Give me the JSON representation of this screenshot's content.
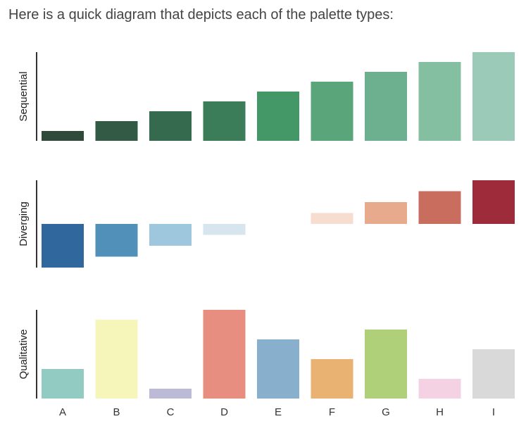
{
  "intro_text": "Here is a quick diagram that depicts each of the palette types:",
  "chart_data": [
    {
      "type": "bar",
      "ylabel": "Sequential",
      "categories": [
        "A",
        "B",
        "C",
        "D",
        "E",
        "F",
        "G",
        "H",
        "I"
      ],
      "values": [
        1,
        2,
        3,
        4,
        5,
        6,
        7,
        8,
        9
      ],
      "ylim": [
        0,
        9
      ],
      "colors": [
        "#2f4a3b",
        "#325a45",
        "#356a4f",
        "#3b7d59",
        "#449767",
        "#5aa57a",
        "#6cb08f",
        "#85bfa2",
        "#9bcbb8"
      ],
      "xticks_visible": false
    },
    {
      "type": "bar",
      "ylabel": "Diverging",
      "categories": [
        "A",
        "B",
        "C",
        "D",
        "E",
        "F",
        "G",
        "H",
        "I"
      ],
      "values": [
        -4,
        -3,
        -2,
        -1,
        0,
        1,
        2,
        3,
        4
      ],
      "ylim": [
        -4,
        4
      ],
      "colors": [
        "#30679c",
        "#5190b8",
        "#9ec6dc",
        "#d6e5ee",
        "#ffffff",
        "#f7dcd0",
        "#e8aa8d",
        "#c96e5f",
        "#9e2b39"
      ],
      "xticks_visible": false
    },
    {
      "type": "bar",
      "ylabel": "Qualitative",
      "categories": [
        "A",
        "B",
        "C",
        "D",
        "E",
        "F",
        "G",
        "H",
        "I"
      ],
      "values": [
        3,
        8,
        1,
        9,
        6,
        4,
        7,
        2,
        5
      ],
      "ylim": [
        0,
        9
      ],
      "colors": [
        "#92cbc1",
        "#f6f5ba",
        "#bdbad8",
        "#e88e80",
        "#88afcc",
        "#e9b273",
        "#afcf78",
        "#f4d2e4",
        "#d9d9d9"
      ],
      "xticks_visible": true
    }
  ]
}
